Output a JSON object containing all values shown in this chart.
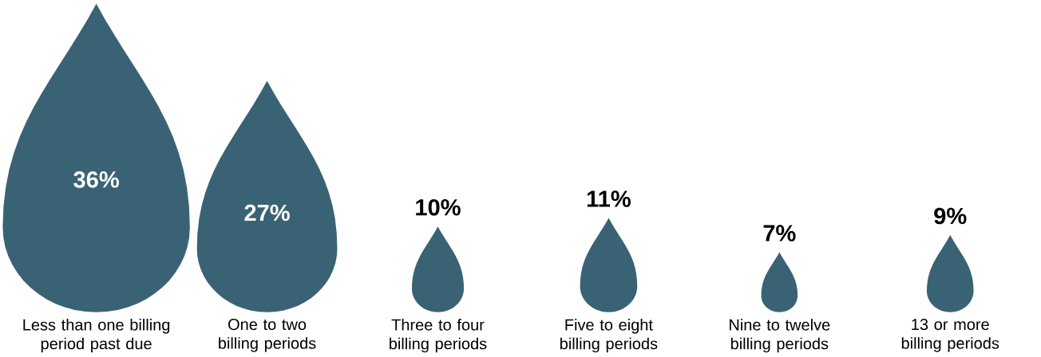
{
  "chart_data": {
    "type": "other",
    "categories": [
      "Less than one billing period past due",
      "One to two billing periods",
      "Three to four billing periods",
      "Five to eight billing periods",
      "Nine to twelve billing periods",
      "13 or more billing periods"
    ],
    "values": [
      36,
      27,
      10,
      11,
      7,
      9
    ],
    "value_labels": [
      "36%",
      "27%",
      "10%",
      "11%",
      "7%",
      "9%"
    ],
    "color": "#3a6275"
  }
}
